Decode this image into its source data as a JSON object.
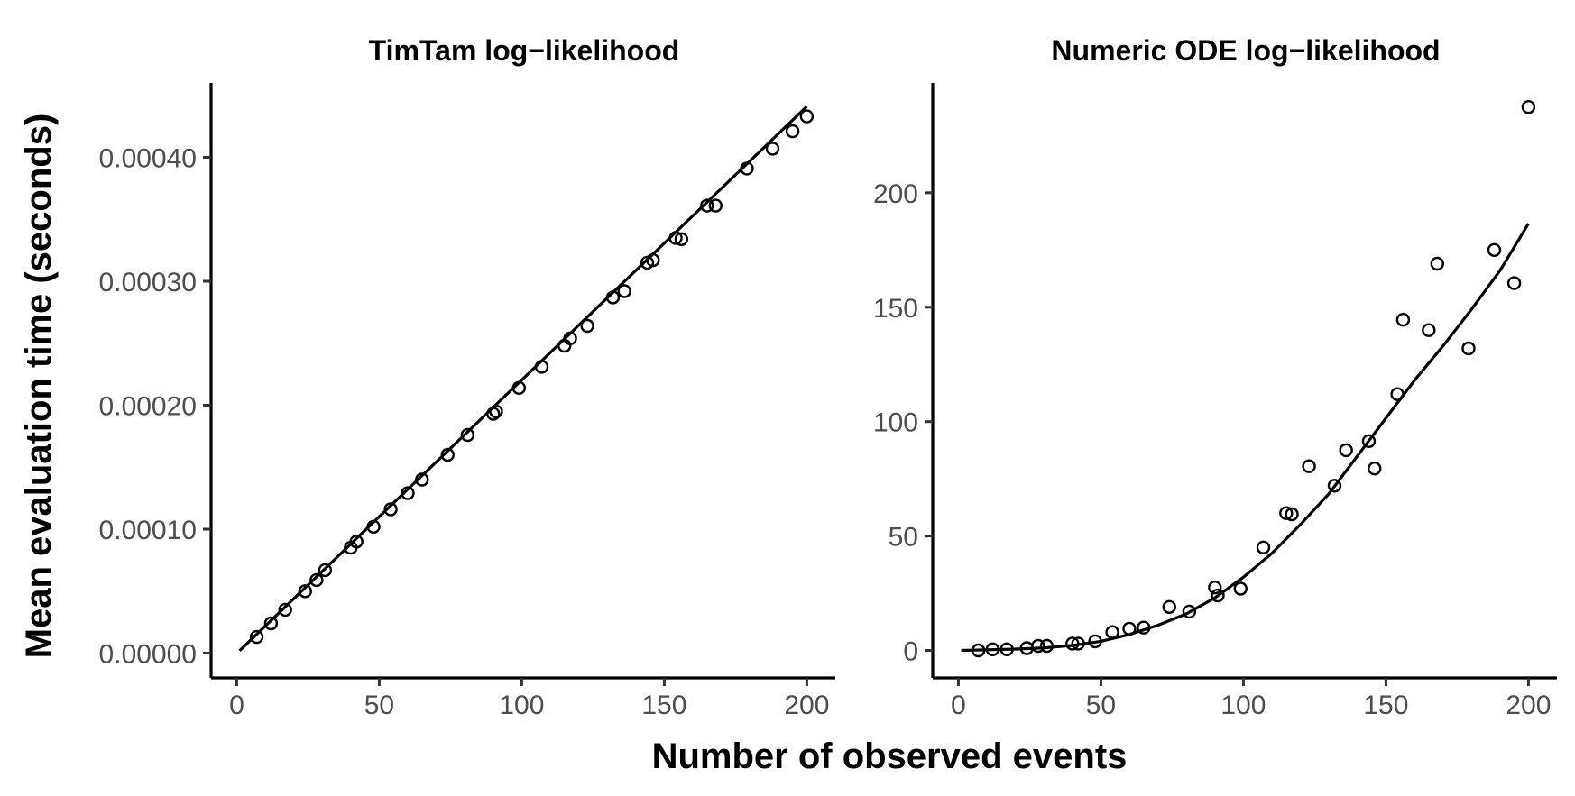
{
  "figure": {
    "shared_xlabel": "Number of observed events",
    "shared_ylabel": "Mean evaluation time (seconds)"
  },
  "chart_data": [
    {
      "type": "scatter",
      "title": "TimTam log−likelihood",
      "xlabel": "Number of observed events",
      "ylabel": "Mean evaluation time (seconds)",
      "xlim": [
        -9,
        210
      ],
      "ylim": [
        -2e-05,
        0.00046
      ],
      "xticks": [
        0,
        50,
        100,
        150,
        200
      ],
      "xtick_labels": [
        "0",
        "50",
        "100",
        "150",
        "200"
      ],
      "yticks": [
        0,
        0.0001,
        0.0002,
        0.0003,
        0.0004
      ],
      "ytick_labels": [
        "0.00000",
        "0.00010",
        "0.00020",
        "0.00030",
        "0.00040"
      ],
      "grid": false,
      "legend": "none",
      "series": [
        {
          "mode": "points",
          "x": [
            7,
            12,
            17,
            24,
            28,
            31,
            40,
            42,
            48,
            54,
            60,
            65,
            74,
            81,
            90,
            91,
            99,
            107,
            115,
            117,
            123,
            132,
            136,
            144,
            146,
            154,
            156,
            165,
            168,
            179,
            188,
            195,
            200
          ],
          "y": [
            1.3e-05,
            2.4e-05,
            3.5e-05,
            5e-05,
            5.9e-05,
            6.7e-05,
            8.5e-05,
            9e-05,
            0.000102,
            0.000116,
            0.000129,
            0.00014,
            0.00016,
            0.000176,
            0.000193,
            0.000195,
            0.000214,
            0.000231,
            0.000248,
            0.000254,
            0.000264,
            0.000287,
            0.000292,
            0.000315,
            0.000317,
            0.000335,
            0.000334,
            0.000361,
            0.000361,
            0.000391,
            0.000407,
            0.000421,
            0.000433
          ]
        },
        {
          "mode": "line",
          "x": [
            1,
            200
          ],
          "y": [
            2e-06,
            0.000441
          ]
        }
      ]
    },
    {
      "type": "scatter",
      "title": "Numeric ODE log−likelihood",
      "xlabel": "Number of observed events",
      "ylabel": "Mean evaluation time (seconds)",
      "xlim": [
        -9,
        210
      ],
      "ylim": [
        -12,
        248
      ],
      "xticks": [
        0,
        50,
        100,
        150,
        200
      ],
      "xtick_labels": [
        "0",
        "50",
        "100",
        "150",
        "200"
      ],
      "yticks": [
        0,
        50,
        100,
        150,
        200
      ],
      "ytick_labels": [
        "0",
        "50",
        "100",
        "150",
        "200"
      ],
      "grid": false,
      "legend": "none",
      "series": [
        {
          "mode": "points",
          "x": [
            7,
            12,
            17,
            24,
            28,
            31,
            40,
            42,
            48,
            54,
            60,
            65,
            74,
            81,
            90,
            91,
            99,
            107,
            115,
            117,
            123,
            132,
            136,
            144,
            146,
            154,
            156,
            165,
            168,
            179,
            188,
            195,
            200
          ],
          "y": [
            0,
            0.5,
            0.5,
            1,
            2,
            2,
            3,
            3,
            4,
            8,
            9.5,
            10,
            19,
            17,
            27.5,
            24,
            27,
            45,
            60,
            59.5,
            80.5,
            72,
            87.5,
            91.5,
            79.5,
            112,
            144.5,
            140,
            169,
            132,
            175,
            160.5,
            237.5
          ]
        },
        {
          "mode": "line",
          "x": [
            1,
            10,
            20,
            30,
            40,
            50,
            60,
            70,
            80,
            90,
            100,
            110,
            120,
            130,
            140,
            150,
            160,
            170,
            180,
            190,
            200
          ],
          "y": [
            0,
            0.3,
            0.6,
            1.1,
            2.2,
            4,
            7,
            11,
            16,
            23,
            32,
            42.5,
            55,
            68.5,
            85,
            101.5,
            118,
            133,
            149,
            166,
            186.5
          ]
        }
      ]
    }
  ]
}
